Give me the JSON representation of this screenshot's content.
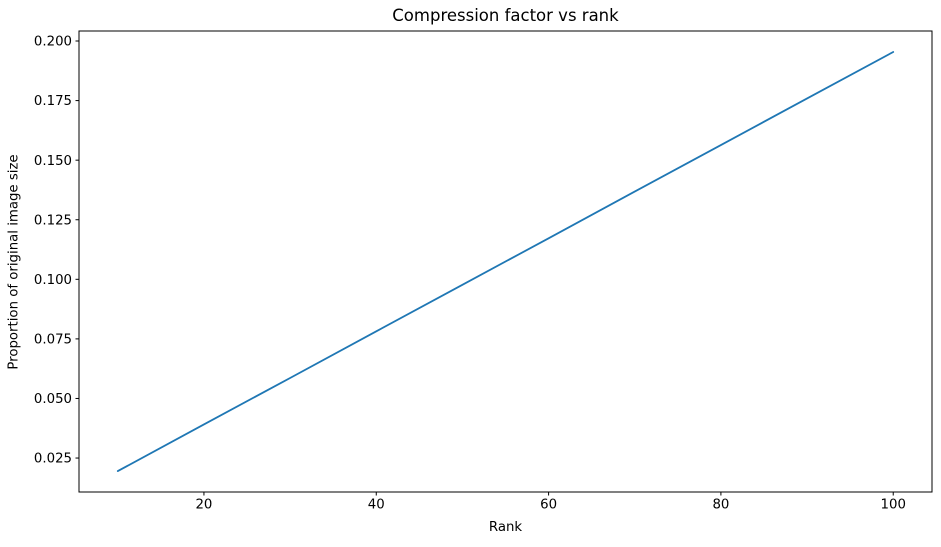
{
  "chart_data": {
    "type": "line",
    "title": "Compression factor vs rank",
    "xlabel": "Rank",
    "ylabel": "Proportion of original image size",
    "x": [
      10,
      20,
      30,
      40,
      50,
      60,
      70,
      80,
      90,
      100
    ],
    "y": [
      0.0195,
      0.0391,
      0.0586,
      0.0782,
      0.0977,
      0.1172,
      0.1368,
      0.1563,
      0.1759,
      0.1954
    ],
    "xlim": [
      5.5,
      104.5
    ],
    "ylim": [
      0.010748,
      0.204201
    ],
    "xticks": {
      "values": [
        20,
        40,
        60,
        80,
        100
      ],
      "labels": [
        "20",
        "40",
        "60",
        "80",
        "100"
      ]
    },
    "yticks": {
      "values": [
        0.025,
        0.05,
        0.075,
        0.1,
        0.125,
        0.15,
        0.175,
        0.2
      ],
      "labels": [
        "0.025",
        "0.050",
        "0.075",
        "0.100",
        "0.125",
        "0.150",
        "0.175",
        "0.200"
      ]
    },
    "line_color": "#1f77b4",
    "spine_color": "#000000",
    "tick_color": "#000000",
    "background_color": "#ffffff",
    "grid": false,
    "legend": null
  }
}
